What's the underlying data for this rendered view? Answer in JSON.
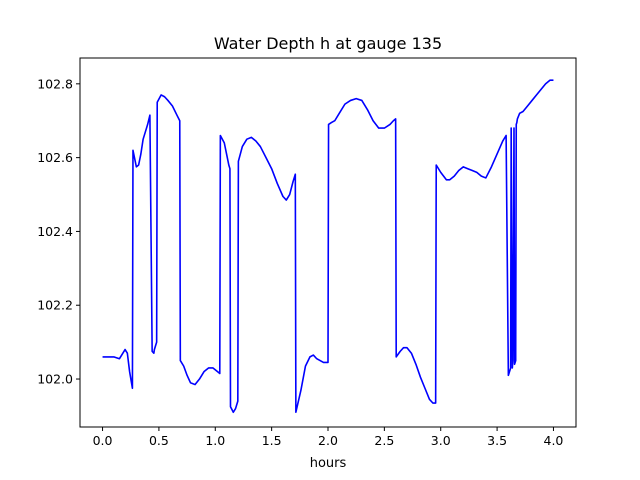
{
  "chart_data": {
    "type": "line",
    "title": "Water Depth h at gauge 135",
    "xlabel": "hours",
    "ylabel": "",
    "xlim": [
      -0.2,
      4.2
    ],
    "ylim": [
      101.87,
      102.87
    ],
    "grid": false,
    "legend": "none",
    "xticks": [
      0.0,
      0.5,
      1.0,
      1.5,
      2.0,
      2.5,
      3.0,
      3.5,
      4.0
    ],
    "xtick_labels": [
      "0.0",
      "0.5",
      "1.0",
      "1.5",
      "2.0",
      "2.5",
      "3.0",
      "3.5",
      "4.0"
    ],
    "yticks": [
      102.0,
      102.2,
      102.4,
      102.6,
      102.8
    ],
    "ytick_labels": [
      "102.0",
      "102.2",
      "102.4",
      "102.6",
      "102.8"
    ],
    "series": [
      {
        "color": "#0000ff",
        "x": [
          0.0,
          0.1,
          0.15,
          0.18,
          0.2,
          0.22,
          0.24,
          0.265,
          0.27,
          0.3,
          0.32,
          0.34,
          0.36,
          0.38,
          0.4,
          0.42,
          0.44,
          0.455,
          0.46,
          0.48,
          0.485,
          0.52,
          0.55,
          0.58,
          0.62,
          0.66,
          0.685,
          0.69,
          0.72,
          0.75,
          0.78,
          0.82,
          0.86,
          0.9,
          0.94,
          0.98,
          1.02,
          1.04,
          1.045,
          1.08,
          1.1,
          1.12,
          1.13,
          1.135,
          1.16,
          1.18,
          1.2,
          1.205,
          1.24,
          1.28,
          1.32,
          1.36,
          1.4,
          1.45,
          1.5,
          1.55,
          1.6,
          1.63,
          1.66,
          1.69,
          1.71,
          1.715,
          1.76,
          1.8,
          1.84,
          1.87,
          1.9,
          1.93,
          1.96,
          2.0,
          2.005,
          2.03,
          2.06,
          2.1,
          2.15,
          2.2,
          2.25,
          2.3,
          2.35,
          2.4,
          2.45,
          2.5,
          2.55,
          2.58,
          2.6,
          2.605,
          2.64,
          2.67,
          2.7,
          2.74,
          2.78,
          2.82,
          2.86,
          2.9,
          2.93,
          2.955,
          2.96,
          3.0,
          3.05,
          3.08,
          3.12,
          3.16,
          3.2,
          3.24,
          3.28,
          3.32,
          3.36,
          3.4,
          3.45,
          3.5,
          3.55,
          3.58,
          3.6,
          3.62,
          3.625,
          3.635,
          3.64,
          3.65,
          3.655,
          3.665,
          3.67,
          3.675,
          3.68,
          3.7,
          3.73,
          3.77,
          3.81,
          3.85,
          3.89,
          3.93,
          3.97,
          4.0
        ],
        "values": [
          102.06,
          102.06,
          102.055,
          102.07,
          102.08,
          102.07,
          102.02,
          101.975,
          102.62,
          102.575,
          102.58,
          102.61,
          102.65,
          102.67,
          102.69,
          102.715,
          102.075,
          102.07,
          102.08,
          102.1,
          102.75,
          102.77,
          102.765,
          102.755,
          102.74,
          102.715,
          102.7,
          102.05,
          102.035,
          102.01,
          101.99,
          101.985,
          102.0,
          102.02,
          102.03,
          102.03,
          102.02,
          102.015,
          102.66,
          102.64,
          102.61,
          102.58,
          102.57,
          101.925,
          101.91,
          101.92,
          101.94,
          102.59,
          102.63,
          102.65,
          102.655,
          102.645,
          102.63,
          102.6,
          102.57,
          102.53,
          102.495,
          102.485,
          102.5,
          102.535,
          102.555,
          101.91,
          101.97,
          102.035,
          102.06,
          102.065,
          102.055,
          102.05,
          102.045,
          102.045,
          102.69,
          102.695,
          102.7,
          102.72,
          102.745,
          102.755,
          102.76,
          102.755,
          102.73,
          102.7,
          102.68,
          102.68,
          102.69,
          102.7,
          102.705,
          102.06,
          102.075,
          102.085,
          102.085,
          102.07,
          102.04,
          102.005,
          101.975,
          101.945,
          101.935,
          101.935,
          102.58,
          102.56,
          102.54,
          102.54,
          102.55,
          102.565,
          102.575,
          102.57,
          102.565,
          102.56,
          102.55,
          102.545,
          102.575,
          102.61,
          102.645,
          102.66,
          102.01,
          102.03,
          102.68,
          102.03,
          102.05,
          102.68,
          102.04,
          102.05,
          102.69,
          102.695,
          102.705,
          102.72,
          102.725,
          102.74,
          102.755,
          102.77,
          102.785,
          102.8,
          102.81,
          102.81
        ]
      }
    ]
  }
}
